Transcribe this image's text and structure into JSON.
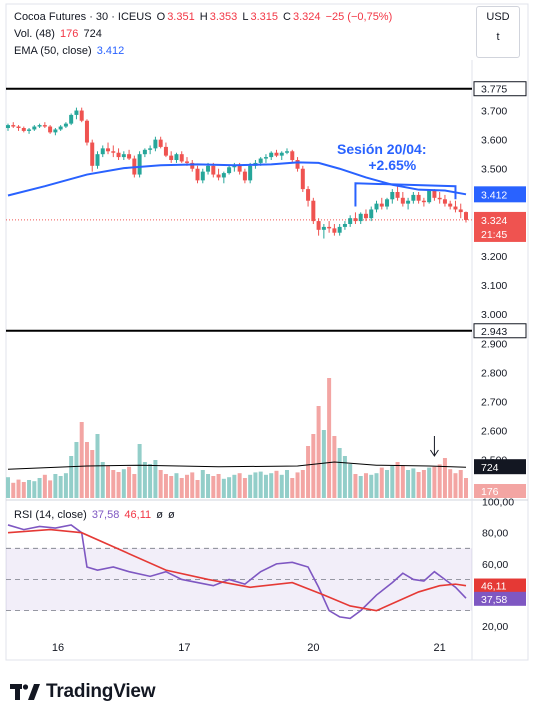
{
  "header": {
    "symbol": "Cocoa Futures · 30 · ICEUS",
    "o_label": "O",
    "o_value": "3.351",
    "h_label": "H",
    "h_value": "3.353",
    "l_label": "L",
    "l_value": "3.315",
    "c_label": "C",
    "c_value": "3.324",
    "change": "−25 (−0,75%)",
    "volume_label": "Vol. (48)",
    "volume_value1": "176",
    "volume_value2": "724",
    "ema_label": "EMA (50, close)",
    "ema_value": "3.412",
    "rsi_label": "RSI (14, close)",
    "rsi_value1": "37,58",
    "rsi_value2": "46,11",
    "rsi_lock1": "ø",
    "rsi_lock2": "ø"
  },
  "currency": {
    "line1": "USD",
    "line2": "t"
  },
  "annotation": {
    "line1": "Sesión 20/04:",
    "line2": "+2.65%"
  },
  "colors": {
    "up": "#26a69a",
    "down": "#ef5350",
    "up_vol": "#93cec9",
    "down_vol": "#f3a5a3",
    "ema": "#2962ff",
    "rsi": "#7e57c2",
    "rsi_ma": "#e53935",
    "accent_blue": "#2962ff",
    "hline": "#000000",
    "vol_ma": "#000000",
    "last_price": "#ef5350"
  },
  "chart_data": {
    "type": "candlestick",
    "price_axis": {
      "ticks": [
        "3.700",
        "3.600",
        "3.500",
        "3.400",
        "3.300",
        "3.200",
        "3.100",
        "3.000",
        "2.900",
        "2.800",
        "2.700",
        "2.600",
        "2.500"
      ],
      "ylim": [
        2.43,
        3.86
      ]
    },
    "x_axis": {
      "ticks": [
        "16",
        "17",
        "20",
        "21"
      ]
    },
    "horizontal_levels": [
      "3.775",
      "2.943"
    ],
    "price_labels": {
      "ema": "3.412",
      "last": "3.324",
      "countdown": "21:45",
      "level_high": "3.775",
      "level_low": "2.943"
    },
    "volume_labels": {
      "ma": "724",
      "last": "176"
    },
    "candles": [
      [
        3.64,
        3.655,
        3.63,
        3.65
      ],
      [
        3.65,
        3.66,
        3.64,
        3.645
      ],
      [
        3.645,
        3.65,
        3.63,
        3.64
      ],
      [
        3.64,
        3.645,
        3.625,
        3.63
      ],
      [
        3.63,
        3.64,
        3.62,
        3.635
      ],
      [
        3.635,
        3.65,
        3.63,
        3.645
      ],
      [
        3.645,
        3.655,
        3.64,
        3.65
      ],
      [
        3.65,
        3.66,
        3.64,
        3.645
      ],
      [
        3.645,
        3.65,
        3.62,
        3.625
      ],
      [
        3.625,
        3.64,
        3.615,
        3.635
      ],
      [
        3.635,
        3.65,
        3.63,
        3.645
      ],
      [
        3.645,
        3.66,
        3.64,
        3.655
      ],
      [
        3.655,
        3.69,
        3.65,
        3.685
      ],
      [
        3.685,
        3.71,
        3.67,
        3.7
      ],
      [
        3.7,
        3.71,
        3.66,
        3.665
      ],
      [
        3.665,
        3.67,
        3.58,
        3.59
      ],
      [
        3.59,
        3.6,
        3.49,
        3.51
      ],
      [
        3.51,
        3.56,
        3.5,
        3.55
      ],
      [
        3.55,
        3.58,
        3.54,
        3.57
      ],
      [
        3.57,
        3.59,
        3.55,
        3.56
      ],
      [
        3.56,
        3.58,
        3.54,
        3.555
      ],
      [
        3.555,
        3.57,
        3.53,
        3.54
      ],
      [
        3.54,
        3.56,
        3.53,
        3.55
      ],
      [
        3.55,
        3.565,
        3.53,
        3.535
      ],
      [
        3.535,
        3.545,
        3.47,
        3.48
      ],
      [
        3.48,
        3.56,
        3.47,
        3.55
      ],
      [
        3.55,
        3.57,
        3.54,
        3.565
      ],
      [
        3.565,
        3.58,
        3.55,
        3.57
      ],
      [
        3.57,
        3.61,
        3.56,
        3.6
      ],
      [
        3.6,
        3.61,
        3.57,
        3.575
      ],
      [
        3.575,
        3.59,
        3.54,
        3.545
      ],
      [
        3.545,
        3.56,
        3.52,
        3.53
      ],
      [
        3.53,
        3.555,
        3.52,
        3.55
      ],
      [
        3.55,
        3.56,
        3.52,
        3.525
      ],
      [
        3.525,
        3.54,
        3.51,
        3.52
      ],
      [
        3.52,
        3.53,
        3.49,
        3.5
      ],
      [
        3.5,
        3.51,
        3.45,
        3.46
      ],
      [
        3.46,
        3.5,
        3.45,
        3.49
      ],
      [
        3.49,
        3.52,
        3.48,
        3.51
      ],
      [
        3.51,
        3.52,
        3.47,
        3.48
      ],
      [
        3.48,
        3.5,
        3.46,
        3.47
      ],
      [
        3.47,
        3.49,
        3.45,
        3.485
      ],
      [
        3.485,
        3.51,
        3.48,
        3.505
      ],
      [
        3.505,
        3.52,
        3.49,
        3.51
      ],
      [
        3.51,
        3.52,
        3.48,
        3.49
      ],
      [
        3.49,
        3.5,
        3.45,
        3.46
      ],
      [
        3.46,
        3.52,
        3.45,
        3.51
      ],
      [
        3.51,
        3.53,
        3.5,
        3.52
      ],
      [
        3.52,
        3.54,
        3.51,
        3.535
      ],
      [
        3.535,
        3.55,
        3.52,
        3.54
      ],
      [
        3.54,
        3.56,
        3.53,
        3.555
      ],
      [
        3.555,
        3.565,
        3.54,
        3.545
      ],
      [
        3.545,
        3.56,
        3.53,
        3.555
      ],
      [
        3.555,
        3.57,
        3.55,
        3.56
      ],
      [
        3.56,
        3.565,
        3.52,
        3.53
      ],
      [
        3.53,
        3.54,
        3.49,
        3.5
      ],
      [
        3.5,
        3.51,
        3.42,
        3.43
      ],
      [
        3.43,
        3.44,
        3.37,
        3.39
      ],
      [
        3.39,
        3.4,
        3.31,
        3.32
      ],
      [
        3.32,
        3.33,
        3.27,
        3.29
      ],
      [
        3.29,
        3.31,
        3.26,
        3.3
      ],
      [
        3.3,
        3.32,
        3.28,
        3.295
      ],
      [
        3.295,
        3.31,
        3.27,
        3.28
      ],
      [
        3.28,
        3.31,
        3.27,
        3.3
      ],
      [
        3.3,
        3.32,
        3.29,
        3.31
      ],
      [
        3.31,
        3.34,
        3.3,
        3.33
      ],
      [
        3.33,
        3.35,
        3.31,
        3.32
      ],
      [
        3.32,
        3.35,
        3.31,
        3.345
      ],
      [
        3.345,
        3.36,
        3.32,
        3.33
      ],
      [
        3.33,
        3.37,
        3.32,
        3.36
      ],
      [
        3.36,
        3.39,
        3.35,
        3.38
      ],
      [
        3.38,
        3.4,
        3.36,
        3.37
      ],
      [
        3.37,
        3.4,
        3.36,
        3.395
      ],
      [
        3.395,
        3.43,
        3.38,
        3.42
      ],
      [
        3.42,
        3.44,
        3.39,
        3.4
      ],
      [
        3.4,
        3.42,
        3.37,
        3.38
      ],
      [
        3.38,
        3.4,
        3.36,
        3.39
      ],
      [
        3.39,
        3.42,
        3.38,
        3.41
      ],
      [
        3.41,
        3.42,
        3.38,
        3.39
      ],
      [
        3.39,
        3.4,
        3.37,
        3.385
      ],
      [
        3.385,
        3.43,
        3.38,
        3.425
      ],
      [
        3.425,
        3.43,
        3.39,
        3.4
      ],
      [
        3.4,
        3.42,
        3.38,
        3.395
      ],
      [
        3.395,
        3.41,
        3.37,
        3.38
      ],
      [
        3.38,
        3.39,
        3.36,
        3.37
      ],
      [
        3.37,
        3.39,
        3.35,
        3.36
      ],
      [
        3.36,
        3.38,
        3.33,
        3.351
      ],
      [
        3.351,
        3.353,
        3.315,
        3.324
      ]
    ],
    "ema": [
      [
        0,
        3.408
      ],
      [
        7,
        3.44
      ],
      [
        15,
        3.48
      ],
      [
        22,
        3.502
      ],
      [
        29,
        3.512
      ],
      [
        36,
        3.515
      ],
      [
        43,
        3.512
      ],
      [
        50,
        3.515
      ],
      [
        55,
        3.522
      ],
      [
        59,
        3.52
      ],
      [
        63,
        3.5
      ],
      [
        68,
        3.47
      ],
      [
        73,
        3.445
      ],
      [
        78,
        3.428
      ],
      [
        83,
        3.425
      ],
      [
        87,
        3.412
      ]
    ],
    "volume": [
      0.52,
      0.38,
      0.46,
      0.4,
      0.45,
      0.42,
      0.5,
      0.58,
      0.44,
      0.6,
      0.55,
      0.62,
      1.05,
      1.4,
      1.9,
      1.4,
      1.2,
      1.6,
      0.9,
      0.8,
      0.7,
      0.65,
      0.72,
      0.78,
      0.6,
      1.35,
      0.9,
      0.85,
      0.95,
      0.7,
      0.6,
      0.55,
      0.62,
      0.5,
      0.58,
      0.64,
      0.45,
      0.7,
      0.6,
      0.55,
      0.6,
      0.48,
      0.52,
      0.58,
      0.62,
      0.5,
      0.58,
      0.64,
      0.66,
      0.58,
      0.62,
      0.68,
      0.58,
      0.7,
      0.5,
      0.64,
      0.7,
      1.3,
      1.6,
      2.3,
      1.7,
      3.0,
      1.55,
      1.25,
      1.05,
      0.85,
      0.6,
      0.55,
      0.62,
      0.58,
      0.62,
      0.76,
      0.7,
      0.8,
      0.9,
      0.82,
      0.7,
      0.74,
      0.65,
      0.7,
      0.76,
      0.78,
      0.84,
      1.0,
      0.72,
      0.62,
      0.7,
      0.5
    ],
    "volume_ma": [
      [
        0,
        0.72
      ],
      [
        15,
        0.8
      ],
      [
        25,
        0.82
      ],
      [
        40,
        0.78
      ],
      [
        55,
        0.8
      ],
      [
        62,
        0.9
      ],
      [
        70,
        0.82
      ],
      [
        80,
        0.8
      ],
      [
        87,
        0.77
      ]
    ],
    "rsi_axis": {
      "ticks": [
        "100,00",
        "80,00",
        "60,00",
        "20,00"
      ],
      "ylim": [
        15,
        101
      ],
      "bands": [
        70,
        50,
        30
      ]
    },
    "rsi_labels": {
      "rsi": "37,58",
      "ma": "46,11"
    },
    "rsi": [
      [
        0,
        85
      ],
      [
        3,
        82
      ],
      [
        6,
        84
      ],
      [
        9,
        83
      ],
      [
        12,
        85
      ],
      [
        14,
        80
      ],
      [
        15,
        58
      ],
      [
        17,
        56
      ],
      [
        20,
        58
      ],
      [
        23,
        55
      ],
      [
        27,
        52
      ],
      [
        30,
        55
      ],
      [
        33,
        50
      ],
      [
        36,
        48
      ],
      [
        39,
        46
      ],
      [
        42,
        50
      ],
      [
        45,
        47
      ],
      [
        48,
        55
      ],
      [
        51,
        60
      ],
      [
        54,
        61
      ],
      [
        57,
        58
      ],
      [
        59,
        45
      ],
      [
        61,
        30
      ],
      [
        63,
        26
      ],
      [
        65,
        25
      ],
      [
        67,
        30
      ],
      [
        70,
        40
      ],
      [
        73,
        48
      ],
      [
        75,
        54
      ],
      [
        77,
        50
      ],
      [
        79,
        49
      ],
      [
        81,
        55
      ],
      [
        83,
        50
      ],
      [
        85,
        45
      ],
      [
        87,
        38
      ]
    ],
    "rsi_ma": [
      [
        0,
        80
      ],
      [
        8,
        82
      ],
      [
        14,
        80
      ],
      [
        22,
        68
      ],
      [
        30,
        56
      ],
      [
        38,
        50
      ],
      [
        46,
        45
      ],
      [
        54,
        48
      ],
      [
        60,
        40
      ],
      [
        65,
        33
      ],
      [
        70,
        30
      ],
      [
        74,
        36
      ],
      [
        78,
        42
      ],
      [
        82,
        46
      ],
      [
        85,
        47
      ],
      [
        87,
        46
      ]
    ],
    "series": [
      {
        "name": "EMA (50, close)"
      },
      {
        "name": "Vol. (48)"
      },
      {
        "name": "RSI (14, close)"
      }
    ]
  }
}
